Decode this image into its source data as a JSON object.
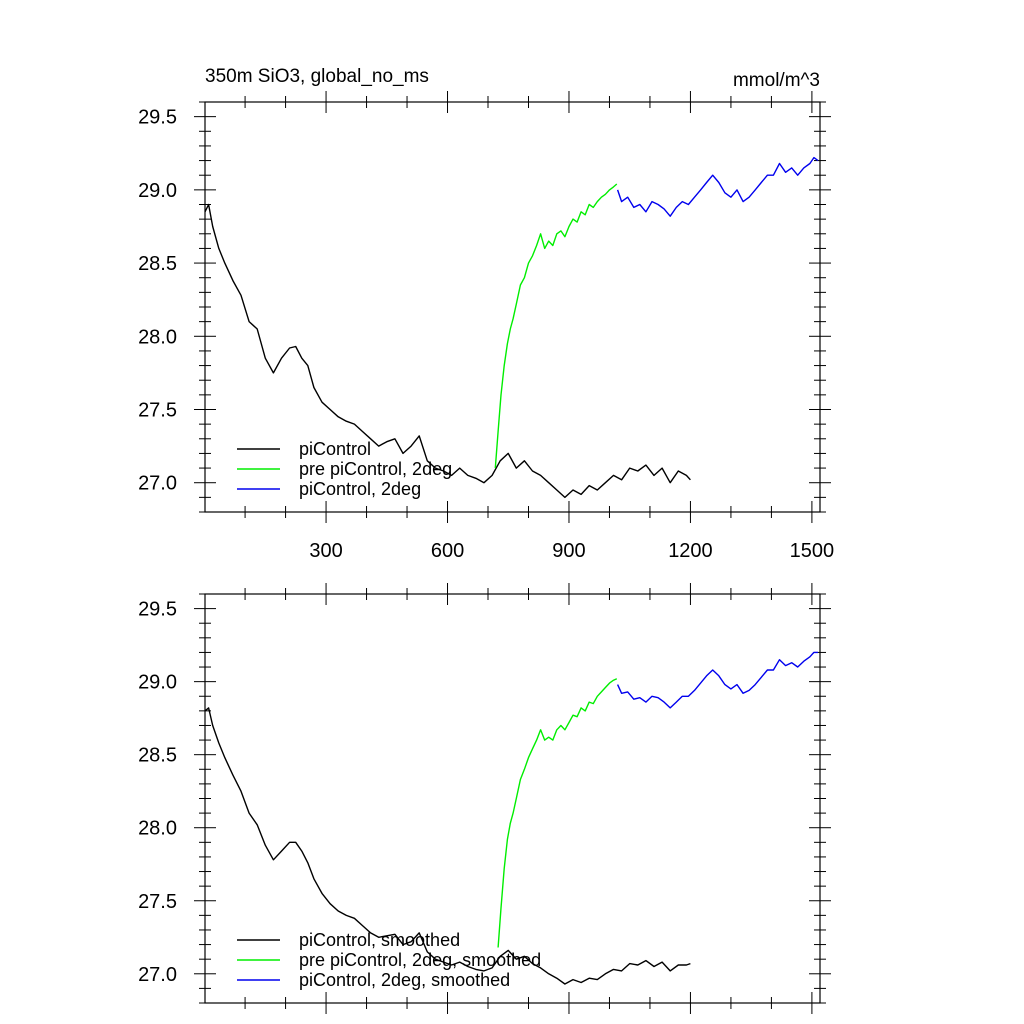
{
  "chart_data": [
    {
      "type": "line",
      "title": "350m SiO3, global_no_ms",
      "units": "mmol/m^3",
      "xlim": [
        1,
        1520
      ],
      "ylim": [
        26.8,
        29.6
      ],
      "xticks": [
        300,
        600,
        900,
        1200,
        1500
      ],
      "xtick_labels": [
        "300",
        "600",
        "900",
        "1200",
        "1500"
      ],
      "yticks": [
        27.0,
        27.5,
        28.0,
        28.5,
        29.0,
        29.5
      ],
      "ytick_labels": [
        "27.0",
        "27.5",
        "28.0",
        "28.5",
        "29.0",
        "29.5"
      ],
      "legend_position": "bottom-left",
      "series": [
        {
          "name": "piControl",
          "color": "#000000",
          "x": [
            1,
            10,
            20,
            35,
            50,
            70,
            90,
            110,
            130,
            150,
            170,
            190,
            210,
            225,
            240,
            255,
            270,
            290,
            310,
            330,
            350,
            370,
            390,
            410,
            430,
            450,
            470,
            490,
            510,
            530,
            550,
            570,
            590,
            610,
            630,
            650,
            670,
            690,
            710,
            730,
            750,
            770,
            790,
            810,
            830,
            850,
            870,
            890,
            910,
            930,
            950,
            970,
            990,
            1010,
            1030,
            1050,
            1070,
            1090,
            1110,
            1130,
            1150,
            1170,
            1190,
            1200
          ],
          "values": [
            28.85,
            28.9,
            28.75,
            28.6,
            28.5,
            28.38,
            28.28,
            28.1,
            28.05,
            27.85,
            27.75,
            27.85,
            27.92,
            27.93,
            27.85,
            27.8,
            27.65,
            27.55,
            27.5,
            27.45,
            27.42,
            27.4,
            27.35,
            27.3,
            27.25,
            27.28,
            27.3,
            27.2,
            27.25,
            27.32,
            27.15,
            27.1,
            27.08,
            27.05,
            27.1,
            27.05,
            27.03,
            27.0,
            27.05,
            27.15,
            27.2,
            27.1,
            27.15,
            27.08,
            27.05,
            27.0,
            26.95,
            26.9,
            26.95,
            26.92,
            26.98,
            26.95,
            27.0,
            27.05,
            27.02,
            27.1,
            27.08,
            27.12,
            27.05,
            27.1,
            27.0,
            27.08,
            27.05,
            27.02
          ]
        },
        {
          "name": "pre piControl, 2deg",
          "color": "#00ee00",
          "x": [
            718,
            725,
            732,
            740,
            748,
            755,
            762,
            770,
            780,
            790,
            800,
            810,
            820,
            830,
            840,
            850,
            860,
            870,
            880,
            890,
            900,
            910,
            920,
            930,
            940,
            950,
            960,
            970,
            980,
            990,
            1000,
            1010,
            1018
          ],
          "values": [
            27.1,
            27.35,
            27.6,
            27.8,
            27.95,
            28.05,
            28.12,
            28.22,
            28.35,
            28.4,
            28.5,
            28.55,
            28.62,
            28.7,
            28.6,
            28.65,
            28.62,
            28.7,
            28.72,
            28.68,
            28.75,
            28.8,
            28.78,
            28.85,
            28.83,
            28.9,
            28.88,
            28.92,
            28.95,
            28.97,
            29.0,
            29.02,
            29.04
          ]
        },
        {
          "name": "piControl, 2deg",
          "color": "#0000ee",
          "x": [
            1020,
            1030,
            1045,
            1060,
            1075,
            1090,
            1105,
            1120,
            1135,
            1150,
            1165,
            1180,
            1195,
            1210,
            1225,
            1240,
            1255,
            1270,
            1285,
            1300,
            1315,
            1330,
            1345,
            1360,
            1375,
            1390,
            1405,
            1420,
            1435,
            1450,
            1465,
            1480,
            1495,
            1505,
            1515
          ],
          "values": [
            29.0,
            28.92,
            28.95,
            28.88,
            28.9,
            28.85,
            28.92,
            28.9,
            28.87,
            28.82,
            28.88,
            28.92,
            28.9,
            28.95,
            29.0,
            29.05,
            29.1,
            29.05,
            28.98,
            28.95,
            29.0,
            28.92,
            28.95,
            29.0,
            29.05,
            29.1,
            29.1,
            29.18,
            29.12,
            29.15,
            29.1,
            29.15,
            29.18,
            29.22,
            29.2
          ]
        }
      ]
    },
    {
      "type": "line",
      "title": "",
      "units": "",
      "xlim": [
        1,
        1520
      ],
      "ylim": [
        26.8,
        29.6
      ],
      "xticks": [
        300,
        600,
        900,
        1200,
        1500
      ],
      "xtick_labels": [],
      "yticks": [
        27.0,
        27.5,
        28.0,
        28.5,
        29.0,
        29.5
      ],
      "ytick_labels": [
        "27.0",
        "27.5",
        "28.0",
        "28.5",
        "29.0",
        "29.5"
      ],
      "legend_position": "bottom-left",
      "series": [
        {
          "name": "piControl, smoothed",
          "color": "#000000",
          "x": [
            1,
            10,
            20,
            35,
            50,
            70,
            90,
            110,
            130,
            150,
            170,
            190,
            210,
            225,
            240,
            255,
            270,
            290,
            310,
            330,
            350,
            370,
            390,
            410,
            430,
            450,
            470,
            490,
            510,
            530,
            550,
            570,
            590,
            610,
            630,
            650,
            670,
            690,
            710,
            730,
            750,
            770,
            790,
            810,
            830,
            850,
            870,
            890,
            910,
            930,
            950,
            970,
            990,
            1010,
            1030,
            1050,
            1070,
            1090,
            1110,
            1130,
            1150,
            1170,
            1190,
            1200
          ],
          "values": [
            28.8,
            28.82,
            28.7,
            28.58,
            28.48,
            28.36,
            28.25,
            28.1,
            28.02,
            27.88,
            27.78,
            27.84,
            27.9,
            27.9,
            27.84,
            27.76,
            27.65,
            27.55,
            27.48,
            27.43,
            27.4,
            27.38,
            27.33,
            27.28,
            27.25,
            27.26,
            27.27,
            27.2,
            27.22,
            27.28,
            27.15,
            27.1,
            27.08,
            27.06,
            27.08,
            27.05,
            27.03,
            27.02,
            27.04,
            27.12,
            27.16,
            27.1,
            27.12,
            27.07,
            27.04,
            27.0,
            26.97,
            26.93,
            26.96,
            26.94,
            26.97,
            26.96,
            27.0,
            27.03,
            27.02,
            27.07,
            27.06,
            27.09,
            27.05,
            27.08,
            27.02,
            27.06,
            27.06,
            27.07
          ]
        },
        {
          "name": "pre piControl, 2deg, smoothed",
          "color": "#00ee00",
          "x": [
            725,
            732,
            740,
            748,
            755,
            762,
            770,
            780,
            790,
            800,
            810,
            820,
            830,
            840,
            850,
            860,
            870,
            880,
            890,
            900,
            910,
            920,
            930,
            940,
            950,
            960,
            970,
            980,
            990,
            1000,
            1010,
            1018
          ],
          "values": [
            27.18,
            27.45,
            27.72,
            27.92,
            28.03,
            28.1,
            28.2,
            28.33,
            28.4,
            28.48,
            28.54,
            28.6,
            28.67,
            28.6,
            28.62,
            28.6,
            28.67,
            28.7,
            28.67,
            28.72,
            28.77,
            28.76,
            28.82,
            28.8,
            28.86,
            28.85,
            28.9,
            28.93,
            28.96,
            28.99,
            29.01,
            29.02
          ]
        },
        {
          "name": "piControl, 2deg, smoothed",
          "color": "#0000ee",
          "x": [
            1020,
            1030,
            1045,
            1060,
            1075,
            1090,
            1105,
            1120,
            1135,
            1150,
            1165,
            1180,
            1195,
            1210,
            1225,
            1240,
            1255,
            1270,
            1285,
            1300,
            1315,
            1330,
            1345,
            1360,
            1375,
            1390,
            1405,
            1420,
            1435,
            1450,
            1465,
            1480,
            1495,
            1505,
            1515
          ],
          "values": [
            28.98,
            28.92,
            28.93,
            28.88,
            28.89,
            28.86,
            28.9,
            28.89,
            28.86,
            28.82,
            28.86,
            28.9,
            28.9,
            28.94,
            28.99,
            29.04,
            29.08,
            29.04,
            28.98,
            28.95,
            28.98,
            28.92,
            28.94,
            28.98,
            29.03,
            29.08,
            29.08,
            29.15,
            29.11,
            29.13,
            29.1,
            29.14,
            29.17,
            29.2,
            29.2
          ]
        }
      ]
    }
  ]
}
